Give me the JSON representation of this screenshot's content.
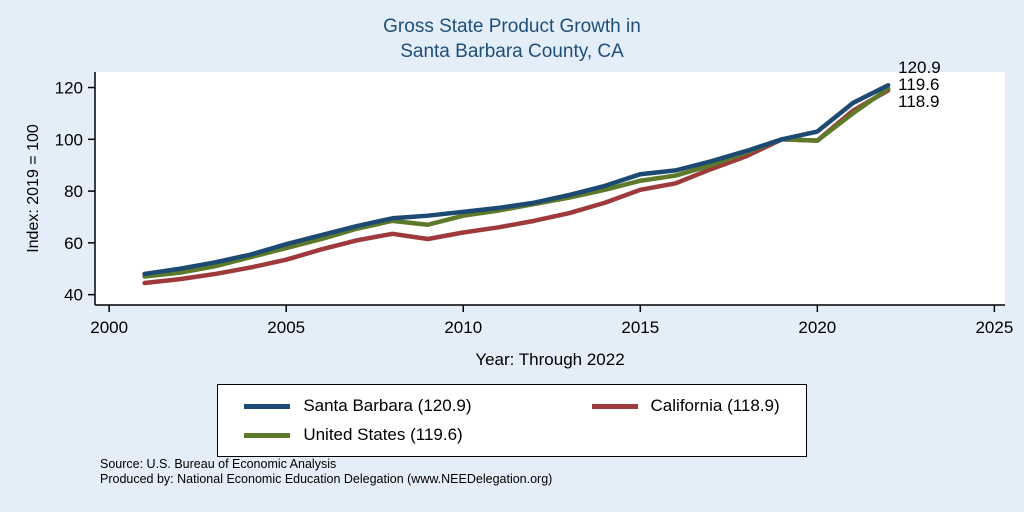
{
  "title": {
    "line1": "Gross State Product Growth in",
    "line2": "Santa Barbara County, CA"
  },
  "chart_data": {
    "type": "line",
    "title": "Gross State Product Growth in Santa Barbara County, CA",
    "xlabel": "Year: Through 2022",
    "ylabel": "Index: 2019 = 100",
    "xlim": [
      1999.6,
      2025.3
    ],
    "ylim": [
      36,
      126
    ],
    "x_ticks": [
      2000,
      2005,
      2010,
      2015,
      2020,
      2025
    ],
    "y_ticks": [
      40,
      60,
      80,
      100,
      120
    ],
    "grid": false,
    "legend_position": "bottom",
    "x": [
      2001,
      2002,
      2003,
      2004,
      2005,
      2006,
      2007,
      2008,
      2009,
      2010,
      2011,
      2012,
      2013,
      2014,
      2015,
      2016,
      2017,
      2018,
      2019,
      2020,
      2021,
      2022
    ],
    "series": [
      {
        "name": "Santa Barbara",
        "final_value": 120.9,
        "color": "#1c4a73",
        "values": [
          48,
          50,
          52.5,
          55.5,
          59.5,
          63,
          66.5,
          69.5,
          70.5,
          72,
          73.5,
          75.5,
          78.5,
          82,
          86.5,
          88,
          91.5,
          95.5,
          100,
          103,
          114,
          120.9
        ]
      },
      {
        "name": "United States",
        "final_value": 119.6,
        "color": "#5d7a2b",
        "values": [
          47,
          48.5,
          51,
          54.5,
          58,
          61.5,
          65.5,
          68.5,
          67,
          70.5,
          72.5,
          75,
          77.5,
          80.5,
          84,
          86,
          90,
          95,
          100,
          99.5,
          110,
          119.6
        ]
      },
      {
        "name": "California",
        "final_value": 118.9,
        "color": "#9e3a3c",
        "values": [
          44.5,
          46,
          48,
          50.5,
          53.5,
          57.5,
          61,
          63.5,
          61.5,
          64,
          66,
          68.5,
          71.5,
          75.5,
          80.5,
          83,
          88.5,
          93.5,
          100,
          99.5,
          111,
          118.9
        ]
      }
    ],
    "end_labels": [
      "120.9",
      "119.6",
      "118.9"
    ]
  },
  "axes": {
    "x_label": "Year: Through 2022",
    "y_label": "Index: 2019 = 100"
  },
  "legend": {
    "entries": [
      {
        "label": "Santa Barbara  (120.9)",
        "color": "#1c4a73"
      },
      {
        "label": "California (118.9)",
        "color": "#9e3a3c"
      },
      {
        "label": "United States (119.6)",
        "color": "#5d7a2b"
      }
    ]
  },
  "footer": {
    "line1": "Source: U.S. Bureau of Economic Analysis",
    "line2": "Produced by: National Economic Education Delegation (www.NEEDelegation.org)"
  }
}
